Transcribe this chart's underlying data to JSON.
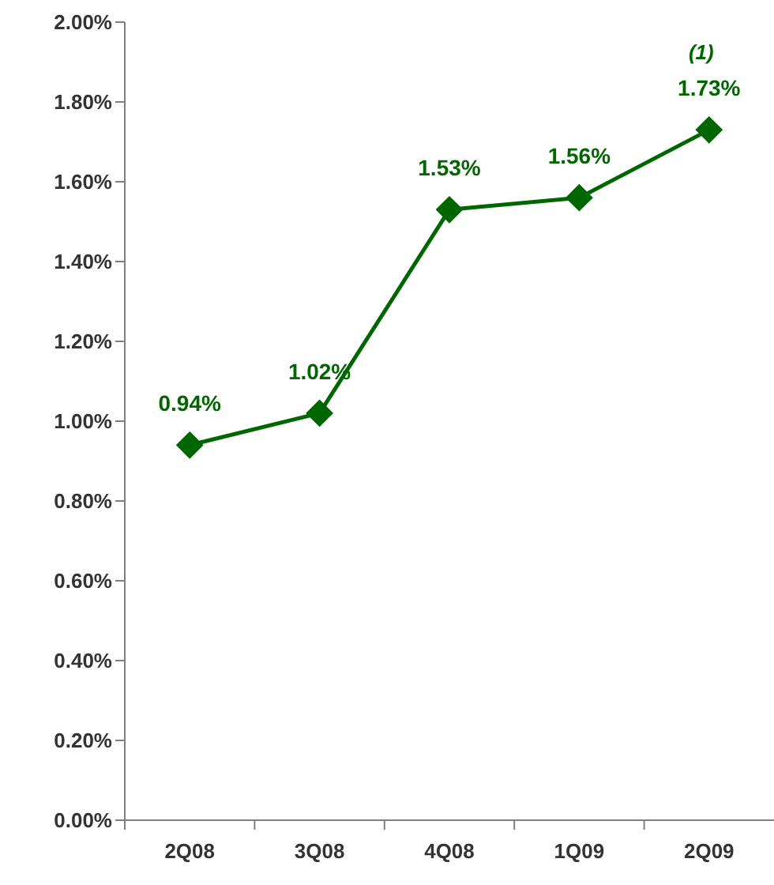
{
  "chart_data": {
    "type": "line",
    "categories": [
      "2Q08",
      "3Q08",
      "4Q08",
      "1Q09",
      "2Q09"
    ],
    "values": [
      0.94,
      1.02,
      1.53,
      1.56,
      1.73
    ],
    "value_labels": [
      "0.94%",
      "1.02%",
      "1.53%",
      "1.56%",
      "1.73%"
    ],
    "color": "#006600",
    "marker": "diamond",
    "line_style": "solid",
    "grid": false,
    "legend": false,
    "ylim": [
      0,
      2
    ],
    "yticks": [
      {
        "value": 0,
        "label": "0.00%"
      },
      {
        "value": 0.2,
        "label": "0.20%"
      },
      {
        "value": 0.4,
        "label": "0.40%"
      },
      {
        "value": 0.6,
        "label": "0.60%"
      },
      {
        "value": 0.8,
        "label": "0.80%"
      },
      {
        "value": 1,
        "label": "1.00%"
      },
      {
        "value": 1.2,
        "label": "1.20%"
      },
      {
        "value": 1.4,
        "label": "1.40%"
      },
      {
        "value": 1.6,
        "label": "1.60%"
      },
      {
        "value": 1.8,
        "label": "1.80%"
      },
      {
        "value": 2,
        "label": "2.00%"
      }
    ],
    "annotations": [
      "(1)"
    ]
  }
}
